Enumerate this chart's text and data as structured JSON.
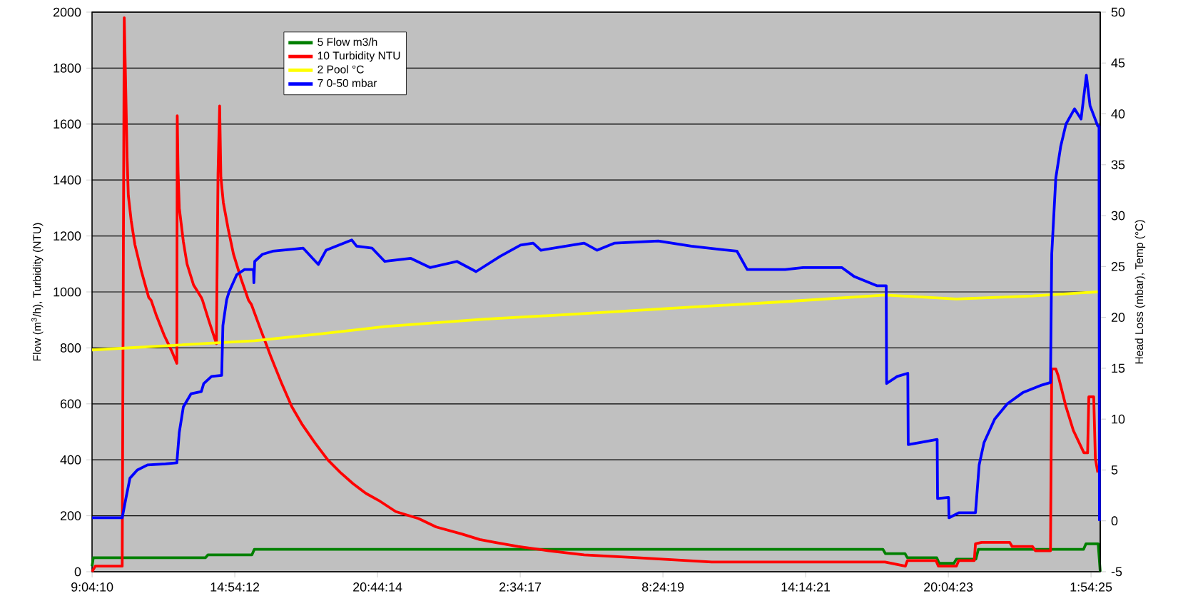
{
  "chart_data": {
    "type": "line",
    "ylabel": "Flow (m$^{3}$/h), Turbidity (NTU)",
    "y2label": "Head Loss (mbar), Temp (°C)",
    "xlim": [
      "2000-01-01T09:04",
      "2000-01-03T02:17"
    ],
    "xticks": [
      {
        "value": "2000-01-01T09:04:10",
        "label": "9:04:10"
      },
      {
        "value": "2000-01-01T14:54:12",
        "label": "14:54:12"
      },
      {
        "value": "2000-01-01T20:44:14",
        "label": "20:44:14"
      },
      {
        "value": "2000-01-02T02:34:17",
        "label": "2:34:17"
      },
      {
        "value": "2000-01-02T08:24:19",
        "label": "8:24:19"
      },
      {
        "value": "2000-01-02T14:14:21",
        "label": "14:14:21"
      },
      {
        "value": "2000-01-02T20:04:23",
        "label": "20:04:23"
      },
      {
        "value": "2000-01-03T01:54:25",
        "label": "1:54:25"
      }
    ],
    "ylim": [
      0,
      2000
    ],
    "yticks": [
      0,
      200,
      400,
      600,
      800,
      1000,
      1200,
      1400,
      1600,
      1800,
      2000
    ],
    "y2lim": [
      -5,
      50
    ],
    "y2ticks": [
      -5,
      0,
      5,
      10,
      15,
      20,
      25,
      30,
      35,
      40,
      45,
      50
    ],
    "grid": "y",
    "legend": "top left",
    "series": [
      {
        "name": "5 Flow m3/h",
        "color": "#008000",
        "x": [
          "2000-01-01T09:04",
          "2000-01-01T09:07",
          "2000-01-01T13:42",
          "2000-01-01T13:48",
          "2000-01-01T15:36",
          "2000-01-01T15:42",
          "2000-01-02T17:24",
          "2000-01-02T17:30",
          "2000-01-02T18:18",
          "2000-01-02T18:24",
          "2000-01-02T19:36",
          "2000-01-02T19:42",
          "2000-01-02T20:18",
          "2000-01-02T20:24",
          "2000-01-02T21:12",
          "2000-01-02T21:18",
          "2000-01-03T01:36",
          "2000-01-03T01:42",
          "2000-01-03T02:12",
          "2000-01-03T02:17"
        ],
        "values": [
          20,
          50,
          50,
          60,
          60,
          80,
          80,
          65,
          65,
          50,
          50,
          30,
          30,
          45,
          45,
          80,
          80,
          100,
          100,
          0
        ]
      },
      {
        "name": "10 Turbidity NTU",
        "color": "#ff0000",
        "x": [
          "2000-01-01T09:04",
          "2000-01-01T09:12",
          "2000-01-01T10:18",
          "2000-01-01T10:23",
          "2000-01-01T10:27",
          "2000-01-01T10:30",
          "2000-01-01T10:33",
          "2000-01-01T10:40",
          "2000-01-01T10:49",
          "2000-01-01T11:04",
          "2000-01-01T11:23",
          "2000-01-01T11:29",
          "2000-01-01T11:42",
          "2000-01-01T12:01",
          "2000-01-01T12:19",
          "2000-01-01T12:32",
          "2000-01-01T12:33",
          "2000-01-01T12:35",
          "2000-01-01T12:38",
          "2000-01-01T12:48",
          "2000-01-01T12:57",
          "2000-01-01T13:13",
          "2000-01-01T13:32",
          "2000-01-01T13:35",
          "2000-01-01T13:50",
          "2000-01-01T14:09",
          "2000-01-01T14:13",
          "2000-01-01T14:17",
          "2000-01-01T14:20",
          "2000-01-01T14:26",
          "2000-01-01T14:38",
          "2000-01-01T14:51",
          "2000-01-01T15:10",
          "2000-01-01T15:28",
          "2000-01-01T15:35",
          "2000-01-01T15:59",
          "2000-01-01T16:25",
          "2000-01-01T16:50",
          "2000-01-01T17:14",
          "2000-01-01T17:40",
          "2000-01-01T18:11",
          "2000-01-01T18:42",
          "2000-01-01T19:13",
          "2000-01-01T19:44",
          "2000-01-01T20:16",
          "2000-01-01T20:47",
          "2000-01-01T21:29",
          "2000-01-01T22:25",
          "2000-01-01T23:08",
          "2000-01-02T00:11",
          "2000-01-02T00:55",
          "2000-01-02T01:32",
          "2000-01-02T02:29",
          "2000-01-02T03:44",
          "2000-01-02T05:11",
          "2000-01-02T07:22",
          "2000-01-02T10:24",
          "2000-01-02T17:29",
          "2000-01-02T18:19",
          "2000-01-02T18:24",
          "2000-01-02T19:34",
          "2000-01-02T19:40",
          "2000-01-02T20:24",
          "2000-01-02T20:30",
          "2000-01-02T21:08",
          "2000-01-02T21:11",
          "2000-01-02T21:26",
          "2000-01-02T22:35",
          "2000-01-02T22:41",
          "2000-01-02T23:31",
          "2000-01-02T23:38",
          "2000-01-03T00:15",
          "2000-01-03T00:18",
          "2000-01-03T00:28",
          "2000-01-03T00:34",
          "2000-01-03T00:53",
          "2000-01-03T01:11",
          "2000-01-03T01:37",
          "2000-01-03T01:46",
          "2000-01-03T01:49",
          "2000-01-03T02:01",
          "2000-01-03T02:05",
          "2000-01-03T02:11"
        ],
        "values": [
          0,
          20,
          20,
          1980,
          1700,
          1480,
          1345,
          1255,
          1170,
          1080,
          980,
          970,
          915,
          845,
          790,
          745,
          1630,
          1430,
          1300,
          1180,
          1100,
          1025,
          980,
          970,
          900,
          815,
          1420,
          1665,
          1410,
          1320,
          1225,
          1135,
          1045,
          970,
          955,
          860,
          760,
          670,
          590,
          525,
          460,
          400,
          355,
          315,
          280,
          255,
          215,
          190,
          160,
          135,
          115,
          105,
          90,
          75,
          60,
          50,
          35,
          35,
          20,
          40,
          40,
          20,
          20,
          40,
          40,
          100,
          105,
          105,
          90,
          90,
          75,
          75,
          725,
          725,
          700,
          590,
          505,
          425,
          425,
          625,
          625,
          405,
          355
        ]
      },
      {
        "name": "2 Pool °C",
        "color": "#ffff00",
        "axis": "y2",
        "x": [
          "2000-01-01T09:04",
          "2000-01-01T12:00",
          "2000-01-01T15:43",
          "2000-01-01T18:30",
          "2000-01-01T21:04",
          "2000-01-02T01:00",
          "2000-01-02T05:23",
          "2000-01-02T09:30",
          "2000-01-02T13:06",
          "2000-01-02T17:29",
          "2000-01-02T20:24",
          "2000-01-02T23:31",
          "2000-01-03T02:08",
          "2000-01-03T02:15"
        ],
        "values": [
          16.8,
          17.2,
          17.7,
          18.4,
          19.1,
          19.8,
          20.4,
          21.0,
          21.5,
          22.2,
          21.8,
          22.1,
          22.5,
          22.5
        ]
      },
      {
        "name": "7 0-50 mbar",
        "color": "#0000ff",
        "axis": "y2",
        "x": [
          "2000-01-01T09:04",
          "2000-01-01T10:18",
          "2000-01-01T10:27",
          "2000-01-01T10:37",
          "2000-01-01T10:55",
          "2000-01-01T11:20",
          "2000-01-01T12:04",
          "2000-01-01T12:32",
          "2000-01-01T12:38",
          "2000-01-01T12:48",
          "2000-01-01T13:07",
          "2000-01-01T13:32",
          "2000-01-01T13:38",
          "2000-01-01T13:57",
          "2000-01-01T14:22",
          "2000-01-01T14:25",
          "2000-01-01T14:34",
          "2000-01-01T14:40",
          "2000-01-01T14:59",
          "2000-01-01T15:18",
          "2000-01-01T15:40",
          "2000-01-01T15:41",
          "2000-01-01T15:43",
          "2000-01-01T16:02",
          "2000-01-01T16:27",
          "2000-01-01T17:17",
          "2000-01-01T17:42",
          "2000-01-01T18:19",
          "2000-01-01T18:38",
          "2000-01-01T19:41",
          "2000-01-01T19:53",
          "2000-01-01T20:31",
          "2000-01-01T21:02",
          "2000-01-01T22:06",
          "2000-01-01T22:53",
          "2000-01-01T23:59",
          "2000-01-02T00:46",
          "2000-01-02T01:45",
          "2000-01-02T02:35",
          "2000-01-02T03:06",
          "2000-01-02T03:25",
          "2000-01-02T05:11",
          "2000-01-02T05:43",
          "2000-01-02T06:26",
          "2000-01-02T08:13",
          "2000-01-02T09:34",
          "2000-01-02T11:26",
          "2000-01-02T11:51",
          "2000-01-02T13:24",
          "2000-01-02T14:08",
          "2000-01-02T15:43",
          "2000-01-02T16:14",
          "2000-01-02T17:10",
          "2000-01-02T17:32",
          "2000-01-02T17:33",
          "2000-01-02T17:59",
          "2000-01-02T18:25",
          "2000-01-02T18:26",
          "2000-01-02T18:56",
          "2000-01-02T19:37",
          "2000-01-02T19:38",
          "2000-01-02T20:05",
          "2000-01-02T20:06",
          "2000-01-02T20:30",
          "2000-01-02T21:11",
          "2000-01-02T21:20",
          "2000-01-02T21:32",
          "2000-01-02T21:58",
          "2000-01-02T22:29",
          "2000-01-02T23:07",
          "2000-01-02T23:50",
          "2000-01-03T00:15",
          "2000-01-03T00:18",
          "2000-01-03T00:28",
          "2000-01-03T00:40",
          "2000-01-03T00:53",
          "2000-01-03T01:14",
          "2000-01-03T01:30",
          "2000-01-03T01:43",
          "2000-01-03T01:52",
          "2000-01-03T02:11",
          "2000-01-03T02:14",
          "2000-01-03T02:15"
        ],
        "values": [
          0.3,
          0.3,
          2.2,
          4.2,
          5.0,
          5.5,
          5.6,
          5.7,
          8.7,
          11.2,
          12.5,
          12.7,
          13.5,
          14.2,
          14.3,
          19.2,
          21.7,
          22.5,
          24.2,
          24.7,
          24.7,
          23.4,
          25.5,
          26.2,
          26.5,
          26.7,
          26.8,
          25.2,
          26.6,
          27.6,
          27.0,
          26.8,
          25.5,
          25.8,
          24.9,
          25.5,
          24.5,
          26.0,
          27.1,
          27.3,
          26.6,
          27.3,
          26.6,
          27.3,
          27.5,
          27.0,
          26.5,
          24.7,
          24.7,
          24.9,
          24.9,
          24.0,
          23.1,
          23.1,
          13.5,
          14.2,
          14.5,
          7.5,
          7.7,
          8.0,
          2.2,
          2.3,
          0.3,
          0.8,
          0.8,
          5.5,
          7.7,
          10.0,
          11.5,
          12.6,
          13.3,
          13.6,
          26.2,
          33.7,
          36.8,
          39.0,
          40.5,
          39.5,
          43.8,
          40.8,
          38.8,
          38.8,
          0
        ]
      }
    ]
  }
}
